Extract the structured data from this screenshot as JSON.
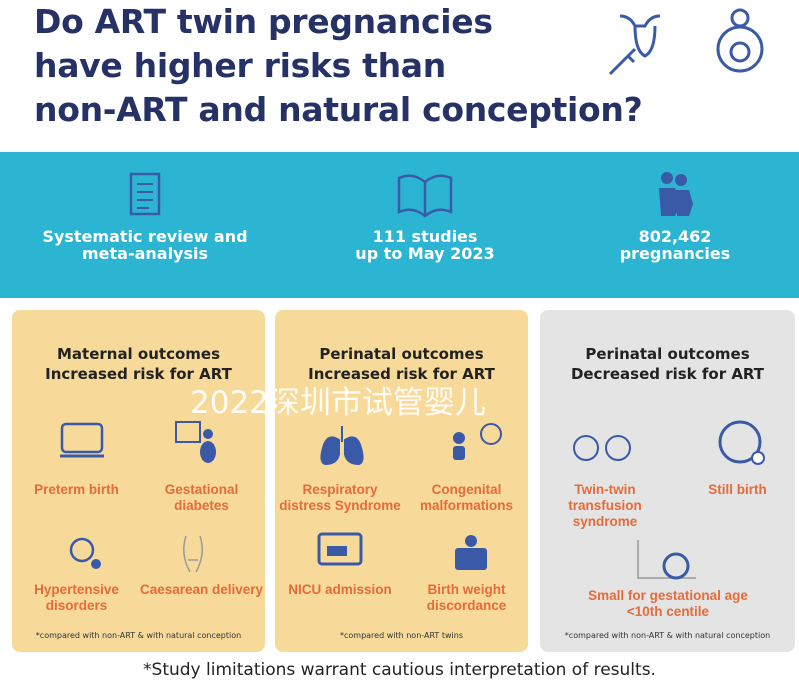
{
  "title": {
    "line1": "Do ART twin pregnancies",
    "line2": "have higher risks than",
    "line3": "non-ART and natural conception?"
  },
  "stats": [
    {
      "icon": "clipboard-checklist-icon",
      "label1": "Systematic review and",
      "label2": "meta-analysis"
    },
    {
      "icon": "open-book-icon",
      "label1": "111 studies",
      "label2": "up to May 2023"
    },
    {
      "icon": "pregnant-women-icon",
      "label1": "802,462",
      "label2": "pregnancies"
    }
  ],
  "cards": [
    {
      "h1": "Maternal outcomes",
      "h2": "Increased risk for ART",
      "items": [
        "Preterm birth",
        "Gestational diabetes",
        "Hypertensive disorders",
        "Caesarean delivery"
      ],
      "note": "*compared with non-ART & with natural conception"
    },
    {
      "h1": "Perinatal outcomes",
      "h2": "Increased risk for ART",
      "items": [
        "Respiratory distress Syndrome",
        "Congenital malformations",
        "NICU admission",
        "Birth weight discordance"
      ],
      "note": "*compared with non-ART twins"
    },
    {
      "h1": "Perinatal outcomes",
      "h2": "Decreased risk for ART",
      "items": [
        "Twin-twin transfusion syndrome",
        "Still birth",
        "Small for gestational age <10th centile"
      ],
      "note": "*compared with non-ART & with natural conception"
    }
  ],
  "footer": "*Study limitations warrant cautious interpretation of results.",
  "watermark": "2022深圳市试管婴儿",
  "colors": {
    "navy": "#263266",
    "band": "#2cb5d2",
    "yellow": "#f7da9a",
    "gray": "#e4e4e4",
    "orange": "#e56b3a",
    "icon": "#3a5aa8"
  }
}
